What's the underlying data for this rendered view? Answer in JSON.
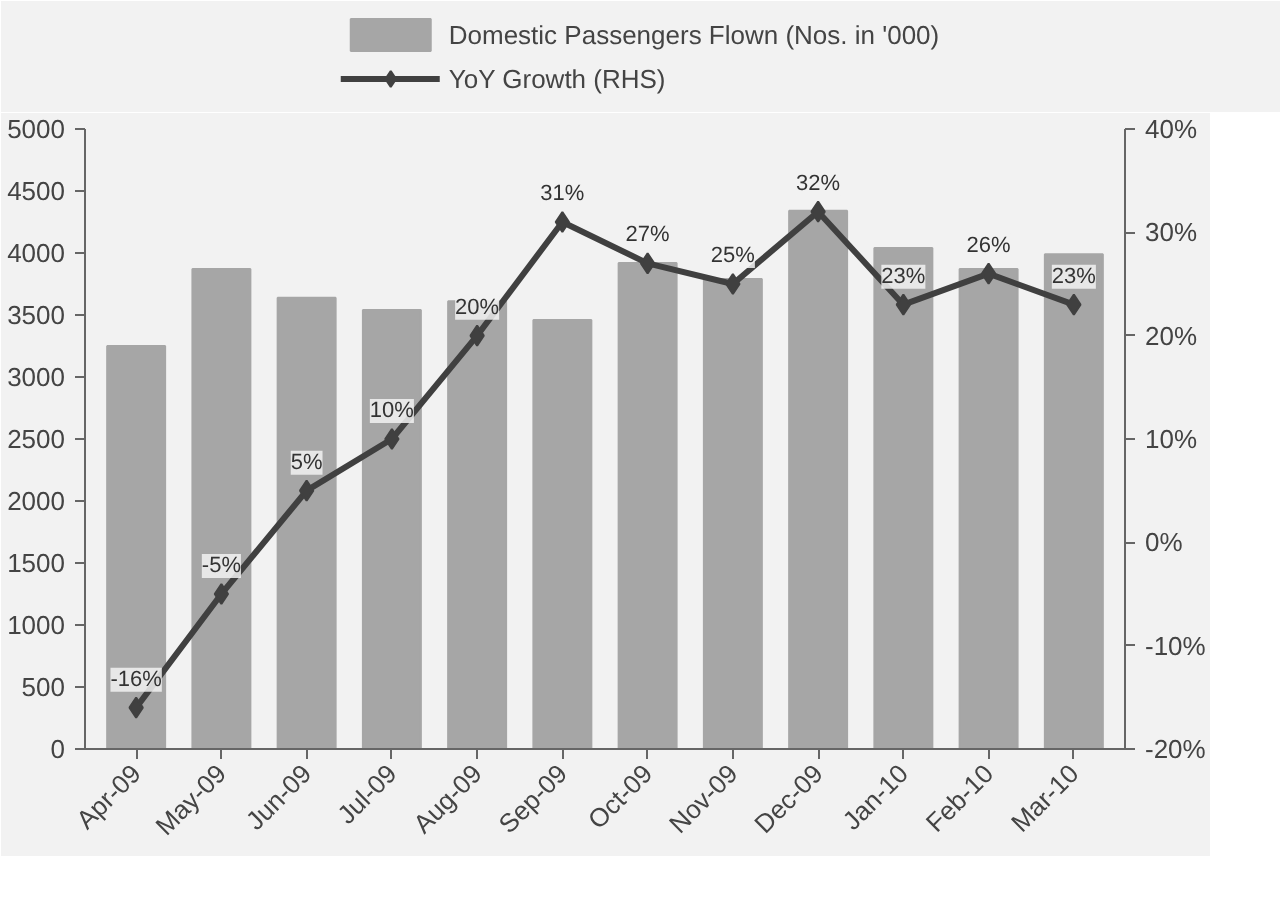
{
  "chart_data": {
    "type": "bar",
    "categories": [
      "Apr-09",
      "May-09",
      "Jun-09",
      "Jul-09",
      "Aug-09",
      "Sep-09",
      "Oct-09",
      "Nov-09",
      "Dec-09",
      "Jan-10",
      "Feb-10",
      "Mar-10"
    ],
    "series": [
      {
        "name": "Domestic Passengers Flown (Nos. in '000)",
        "color": "#a6a6a6",
        "values": [
          3250,
          3870,
          3640,
          3540,
          3610,
          3460,
          3920,
          3790,
          4340,
          4040,
          3870,
          3990
        ]
      },
      {
        "name": "YoY Growth (RHS)",
        "type": "line",
        "axis": "y2",
        "color": "#404040",
        "marker": "diamond",
        "values": [
          -16,
          -5,
          5,
          10,
          20,
          31,
          27,
          25,
          32,
          23,
          26,
          23
        ],
        "value_labels": [
          "-16%",
          "-5%",
          "5%",
          "10%",
          "20%",
          "31%",
          "27%",
          "25%",
          "32%",
          "23%",
          "26%",
          "23%"
        ]
      }
    ],
    "ylim": [
      0,
      5000
    ],
    "yticks": [
      0,
      500,
      1000,
      1500,
      2000,
      2500,
      3000,
      3500,
      4000,
      4500,
      5000
    ],
    "y2lim": [
      -20,
      40
    ],
    "y2ticks": [
      {
        "value": -20,
        "label": "-20%"
      },
      {
        "value": -10,
        "label": "-10%"
      },
      {
        "value": 0,
        "label": "0%"
      },
      {
        "value": 10,
        "label": "10%"
      },
      {
        "value": 20,
        "label": "20%"
      },
      {
        "value": 30,
        "label": "30%"
      },
      {
        "value": 40,
        "label": "40%"
      }
    ],
    "grid": false,
    "legend": "top"
  }
}
